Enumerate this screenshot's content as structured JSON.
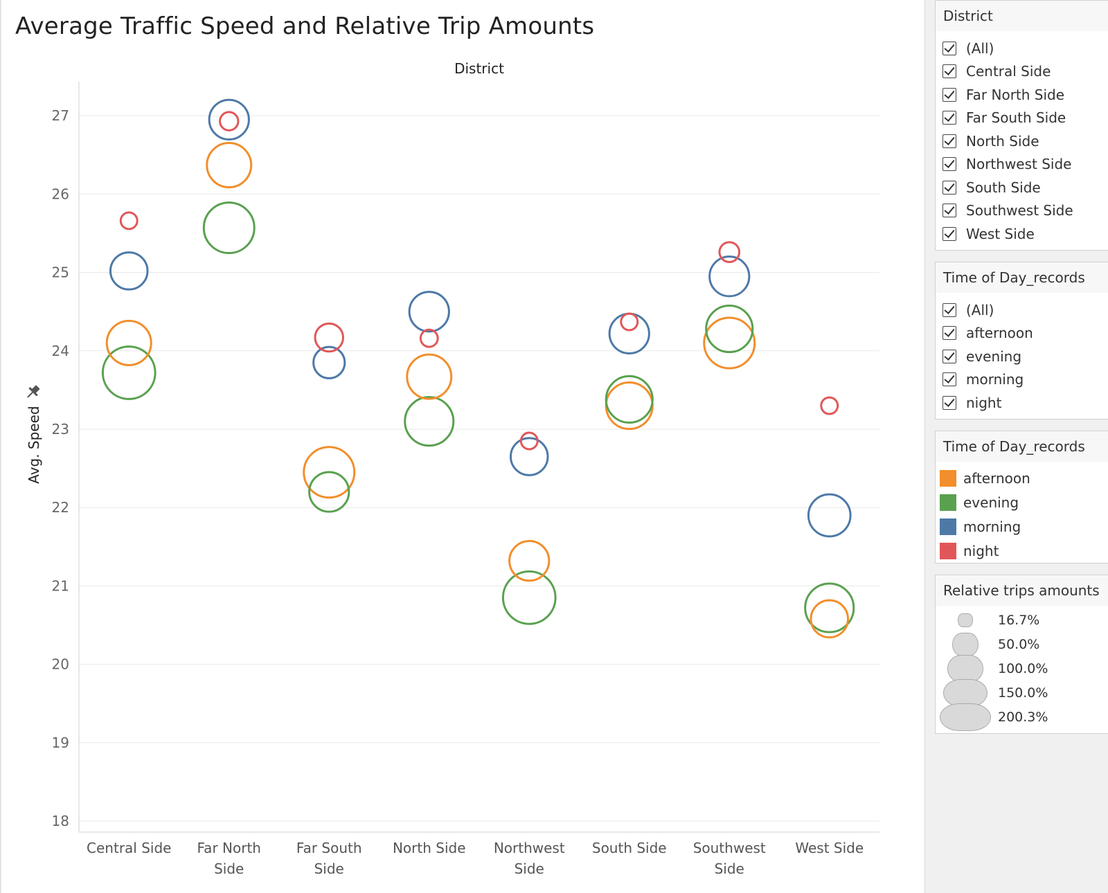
{
  "chart_data": {
    "type": "scatter",
    "title": "Average Traffic Speed and Relative Trip Amounts",
    "column_header": "District",
    "ylabel": "Avg. Speed",
    "ylim": [
      18,
      27.6
    ],
    "yticks": [
      18,
      19,
      20,
      21,
      22,
      23,
      24,
      25,
      26,
      27
    ],
    "categories": [
      {
        "label": [
          "Central Side"
        ]
      },
      {
        "label": [
          "Far North",
          "Side"
        ]
      },
      {
        "label": [
          "Far South",
          "Side"
        ]
      },
      {
        "label": [
          "North Side"
        ]
      },
      {
        "label": [
          "Northwest",
          "Side"
        ]
      },
      {
        "label": [
          "South Side"
        ]
      },
      {
        "label": [
          "Southwest",
          "Side"
        ]
      },
      {
        "label": [
          "West Side"
        ]
      }
    ],
    "series": [
      {
        "name": "afternoon",
        "color": "#f28e2b",
        "values": [
          24.1,
          26.37,
          22.45,
          23.67,
          21.32,
          23.3,
          24.1,
          20.58
        ],
        "sizes": [
          100,
          100,
          130,
          100,
          80,
          110,
          130,
          70
        ]
      },
      {
        "name": "evening",
        "color": "#59a14f",
        "values": [
          23.72,
          25.57,
          22.2,
          23.1,
          20.85,
          23.38,
          24.28,
          20.72
        ],
        "sizes": [
          140,
          130,
          80,
          120,
          140,
          110,
          110,
          120
        ]
      },
      {
        "name": "morning",
        "color": "#4e79a7",
        "values": [
          25.02,
          26.95,
          23.85,
          24.5,
          22.65,
          24.22,
          24.95,
          21.9
        ],
        "sizes": [
          70,
          80,
          50,
          80,
          70,
          80,
          80,
          90
        ]
      },
      {
        "name": "night",
        "color": "#e15759",
        "values": [
          25.66,
          26.93,
          24.17,
          24.16,
          22.85,
          24.37,
          25.26,
          23.3
        ],
        "sizes": [
          14,
          17,
          40,
          15,
          14,
          14,
          20,
          14
        ]
      }
    ]
  },
  "filters": {
    "district": {
      "title": "District",
      "items": [
        "(All)",
        "Central Side",
        "Far North Side",
        "Far South Side",
        "North Side",
        "Northwest Side",
        "South Side",
        "Southwest Side",
        "West Side"
      ]
    },
    "time_of_day": {
      "title": "Time of Day_records",
      "items": [
        "(All)",
        "afternoon",
        "evening",
        "morning",
        "night"
      ]
    }
  },
  "color_legend": {
    "title": "Time of Day_records",
    "items": [
      {
        "label": "afternoon",
        "color": "#f28e2b"
      },
      {
        "label": "evening",
        "color": "#59a14f"
      },
      {
        "label": "morning",
        "color": "#4e79a7"
      },
      {
        "label": "night",
        "color": "#e15759"
      }
    ]
  },
  "size_legend": {
    "title": "Relative trips amounts",
    "items": [
      {
        "label": "16.7%",
        "value": 16.7
      },
      {
        "label": "50.0%",
        "value": 50.0
      },
      {
        "label": "100.0%",
        "value": 100.0
      },
      {
        "label": "150.0%",
        "value": 150.0
      },
      {
        "label": "200.3%",
        "value": 200.3
      }
    ]
  }
}
